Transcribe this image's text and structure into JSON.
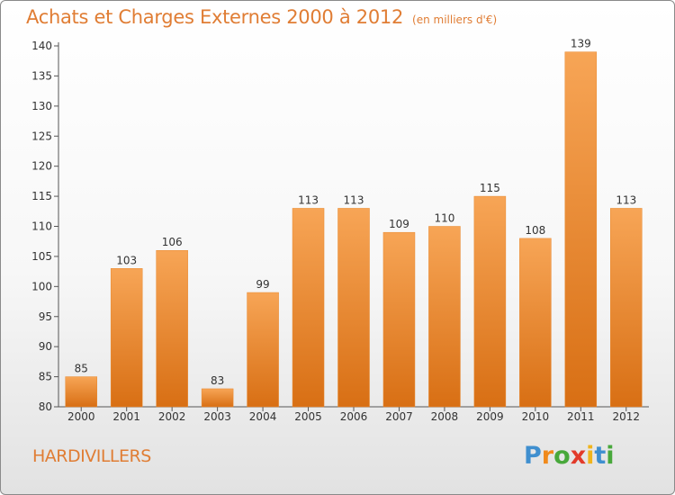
{
  "header": {
    "title": "Achats et Charges Externes 2000 à 2012",
    "subtitle": "(en milliers d'€)"
  },
  "footer": {
    "town": "HARDIVILLERS",
    "logo": "Proxiti",
    "logo_letters": [
      "P",
      "r",
      "o",
      "x",
      "i",
      "t",
      "i"
    ],
    "logo_colors": [
      "#3f8fcf",
      "#f08a1c",
      "#48a83b",
      "#e23a2a",
      "#f0b41c",
      "#3f8fcf",
      "#48a83b"
    ]
  },
  "colors": {
    "bar": "#f08b30",
    "bar_light": "#f7a556",
    "bar_dark": "#d86f14",
    "text_accent": "#e07d34",
    "axis": "#555555"
  },
  "chart_data": {
    "type": "bar",
    "title": "Achats et Charges Externes 2000 à 2012",
    "subtitle": "(en milliers d'€)",
    "categories": [
      "2000",
      "2001",
      "2002",
      "2003",
      "2004",
      "2005",
      "2006",
      "2007",
      "2008",
      "2009",
      "2010",
      "2011",
      "2012"
    ],
    "values": [
      85,
      103,
      106,
      83,
      99,
      113,
      113,
      109,
      110,
      115,
      108,
      139,
      113
    ],
    "ylim": [
      80,
      140
    ],
    "yticks": [
      80,
      85,
      90,
      95,
      100,
      105,
      110,
      115,
      120,
      125,
      130,
      135,
      140
    ],
    "xlabel": "",
    "ylabel": "",
    "grid": false,
    "data_labels": true
  }
}
